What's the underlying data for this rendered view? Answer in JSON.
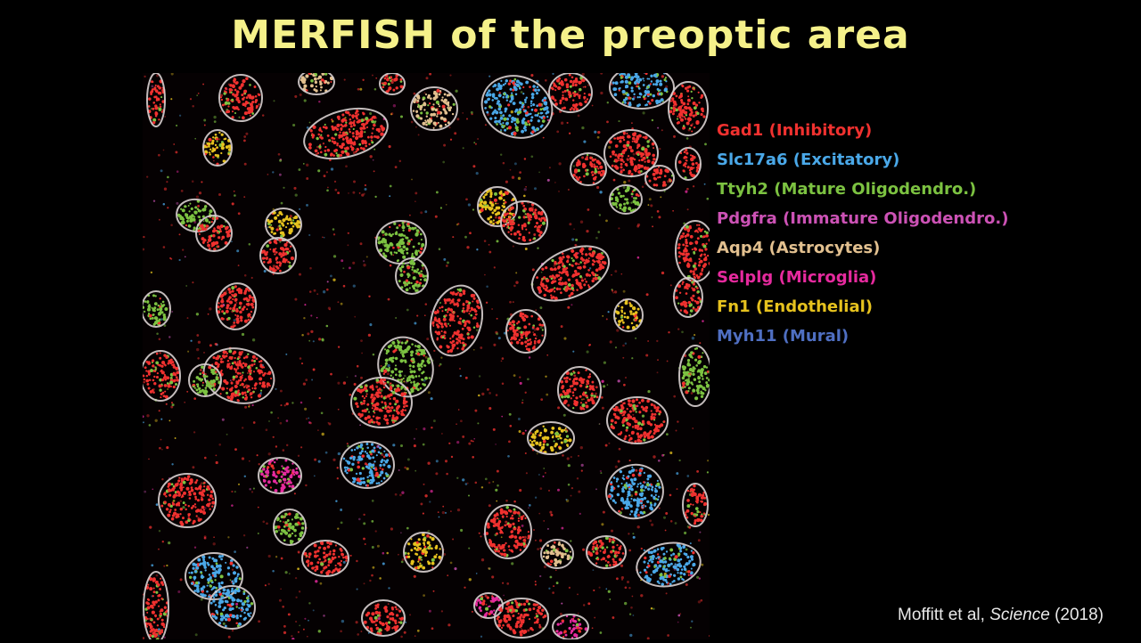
{
  "slide": {
    "title": "MERFISH of the preoptic area",
    "title_color": "#f5f18a",
    "citation": {
      "authors": "Moffitt et al, ",
      "journal": "Science",
      "year": " (2018)"
    }
  },
  "legend": {
    "items": [
      {
        "label": "Gad1 (Inhibitory)",
        "color": "#f0312f"
      },
      {
        "label": "Slc17a6 (Excitatory)",
        "color": "#4aa8e8"
      },
      {
        "label": "Ttyh2 (Mature Oligodendro.)",
        "color": "#7cc241"
      },
      {
        "label": "Pdgfra (Immature Oligodendro.)",
        "color": "#cc52b5"
      },
      {
        "label": "Aqp4 (Astrocytes)",
        "color": "#e2c08f"
      },
      {
        "label": "Selplg (Microglia)",
        "color": "#e62a9e"
      },
      {
        "label": "Fn1 (Endothelial)",
        "color": "#e6c21e"
      },
      {
        "label": "Myh11 (Mural)",
        "color": "#4f6fc2"
      }
    ]
  },
  "micrograph": {
    "outline_color": "#d9d0d0",
    "background": "#050102"
  }
}
